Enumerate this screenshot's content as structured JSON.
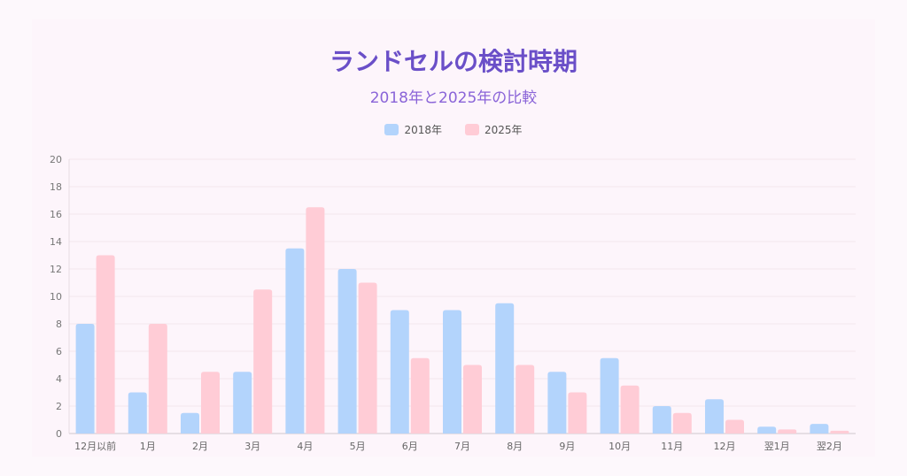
{
  "title": "ランドセルの検討時期",
  "subtitle": "2018年と2025年の比較",
  "colors": {
    "series1": "#b3d4fc",
    "series2": "#ffccd6",
    "grid": "#f3e6ee",
    "axis": "#777777"
  },
  "chart_data": {
    "type": "bar",
    "categories": [
      "12月以前",
      "1月",
      "2月",
      "3月",
      "4月",
      "5月",
      "6月",
      "7月",
      "8月",
      "9月",
      "10月",
      "11月",
      "12月",
      "翌1月",
      "翌2月"
    ],
    "series": [
      {
        "name": "2018年",
        "values": [
          8,
          3,
          1.5,
          4.5,
          13.5,
          12,
          9,
          9,
          9.5,
          4.5,
          5.5,
          2,
          2.5,
          0.5,
          0.7
        ]
      },
      {
        "name": "2025年",
        "values": [
          13,
          8,
          4.5,
          10.5,
          16.5,
          11,
          5.5,
          5,
          5,
          3,
          3.5,
          1.5,
          1,
          0.3,
          0.2
        ]
      }
    ],
    "ylim": [
      0,
      20
    ],
    "yticks": [
      0,
      2,
      4,
      6,
      8,
      10,
      12,
      14,
      16,
      18,
      20
    ],
    "legend": "top",
    "grid": true
  }
}
